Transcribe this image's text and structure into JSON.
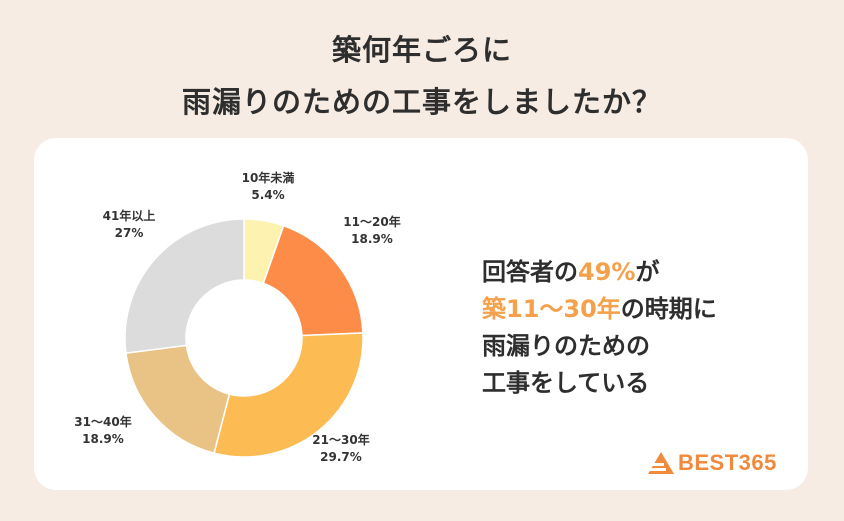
{
  "title": {
    "line1": "築何年ごろに",
    "line2": "雨漏りのための工事をしましたか？"
  },
  "chart_data": {
    "type": "pie",
    "donut": true,
    "start": "top",
    "direction": "clockwise",
    "slices": [
      {
        "label": "10年未満",
        "value": 5.4,
        "display": "5.4%",
        "color": "#fdf2b0"
      },
      {
        "label": "11～20年",
        "value": 18.9,
        "display": "18.9%",
        "color": "#fc8c48"
      },
      {
        "label": "21～30年",
        "value": 29.7,
        "display": "29.7%",
        "color": "#fdbb54"
      },
      {
        "label": "31～40年",
        "value": 18.9,
        "display": "18.9%",
        "color": "#e9c386"
      },
      {
        "label": "41年以上",
        "value": 27,
        "display": "27%",
        "color": "#dcdcdc"
      }
    ]
  },
  "message": {
    "l1_a": "回答者の",
    "l1_b": "49%",
    "l1_c": "が",
    "l2_a": "築11～30年",
    "l2_b": "の時期に",
    "l3": "雨漏りのための",
    "l4": "工事をしている"
  },
  "brand": {
    "name": "BEST365",
    "color": "#f08a3c"
  }
}
